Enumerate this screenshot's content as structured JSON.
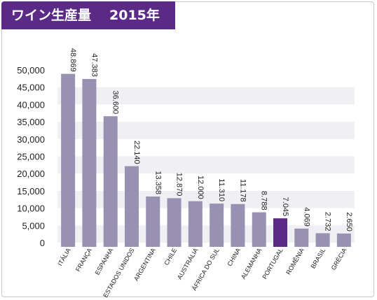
{
  "header": {
    "title": "ワイン生産量",
    "year": "2015年"
  },
  "chart_data": {
    "type": "bar",
    "title": "ワイン生産量 2015年",
    "categories": [
      "ITÁLIA",
      "FRANÇA",
      "ESPANHA",
      "ESTADOS UNIDOS",
      "ARGENTINA",
      "CHILE",
      "AUSTRÁLIA",
      "ÁFRICA DO SUL",
      "CHINA",
      "ALEMANHA",
      "PORTUGAL",
      "ROMÊNIA",
      "BRASIL",
      "GRÉCIA"
    ],
    "values": [
      48869,
      47383,
      36600,
      22140,
      13358,
      12870,
      12000,
      11310,
      11178,
      8788,
      7045,
      4069,
      2732,
      2650
    ],
    "value_labels": [
      "48.869",
      "47.383",
      "36.600",
      "22.140",
      "13.358",
      "12.870",
      "12.000",
      "11.310",
      "11.178",
      "8.788",
      "7.045",
      "4.069",
      "2.732",
      "2.650"
    ],
    "highlight_index": 10,
    "y_ticks": [
      0,
      5000,
      10000,
      15000,
      20000,
      25000,
      30000,
      35000,
      40000,
      45000,
      50000
    ],
    "y_tick_labels": [
      "0",
      "5,000",
      "10,000",
      "15,000",
      "20,000",
      "25,000",
      "30,000",
      "35,000",
      "40,000",
      "45,000",
      "50,000"
    ],
    "ylim": [
      0,
      50000
    ],
    "xlabel": "",
    "ylabel": "",
    "colors": {
      "bar": "#9891b1",
      "highlight": "#5b2a86",
      "band": "#efeff4"
    }
  }
}
